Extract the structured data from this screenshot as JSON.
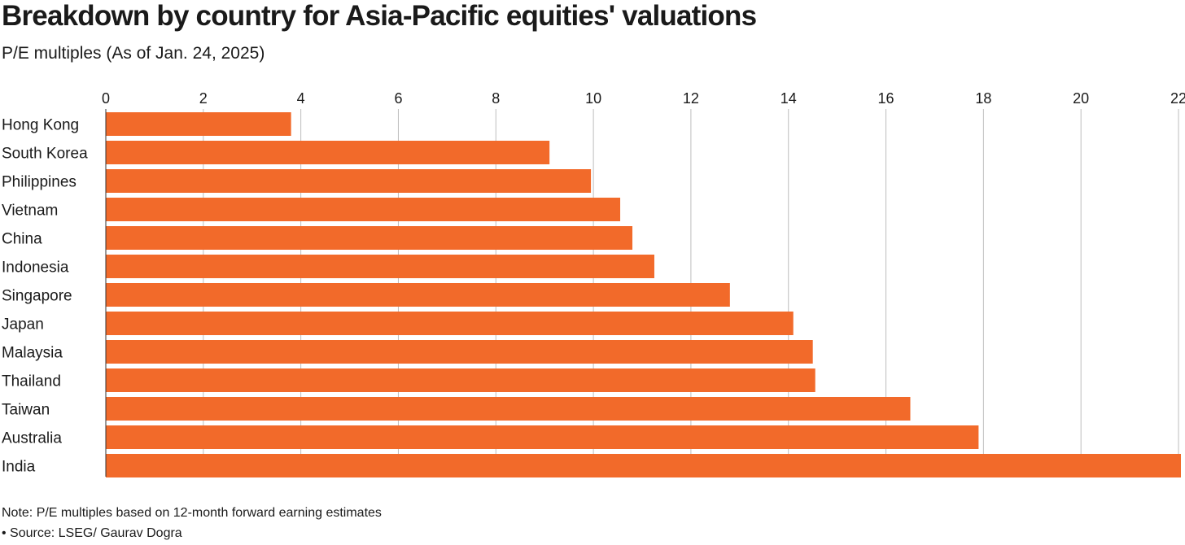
{
  "header": {
    "title": "Breakdown by country for Asia-Pacific equities' valuations",
    "subtitle": "P/E multiples (As of Jan. 24, 2025)"
  },
  "footer": {
    "note": "Note: P/E multiples based on 12-month forward earning estimates",
    "source": "• Source: LSEG/ Gaurav Dogra"
  },
  "colors": {
    "bar": "#f26a2a",
    "grid": "#bdbdbd",
    "axis": "#333333",
    "text": "#1a1a1a"
  },
  "chart_data": {
    "type": "bar",
    "orientation": "horizontal",
    "categories": [
      "Hong Kong",
      "South Korea",
      "Philippines",
      "Vietnam",
      "China",
      "Indonesia",
      "Singapore",
      "Japan",
      "Malaysia",
      "Thailand",
      "Taiwan",
      "Australia",
      "India"
    ],
    "values": [
      3.8,
      9.1,
      9.95,
      10.55,
      10.8,
      11.25,
      12.8,
      14.1,
      14.5,
      14.55,
      16.5,
      17.9,
      22.05
    ],
    "xlim": [
      0,
      22
    ],
    "xticks": [
      0,
      2,
      4,
      6,
      8,
      10,
      12,
      14,
      16,
      18,
      20,
      22
    ],
    "grid": true,
    "legend": "none"
  }
}
